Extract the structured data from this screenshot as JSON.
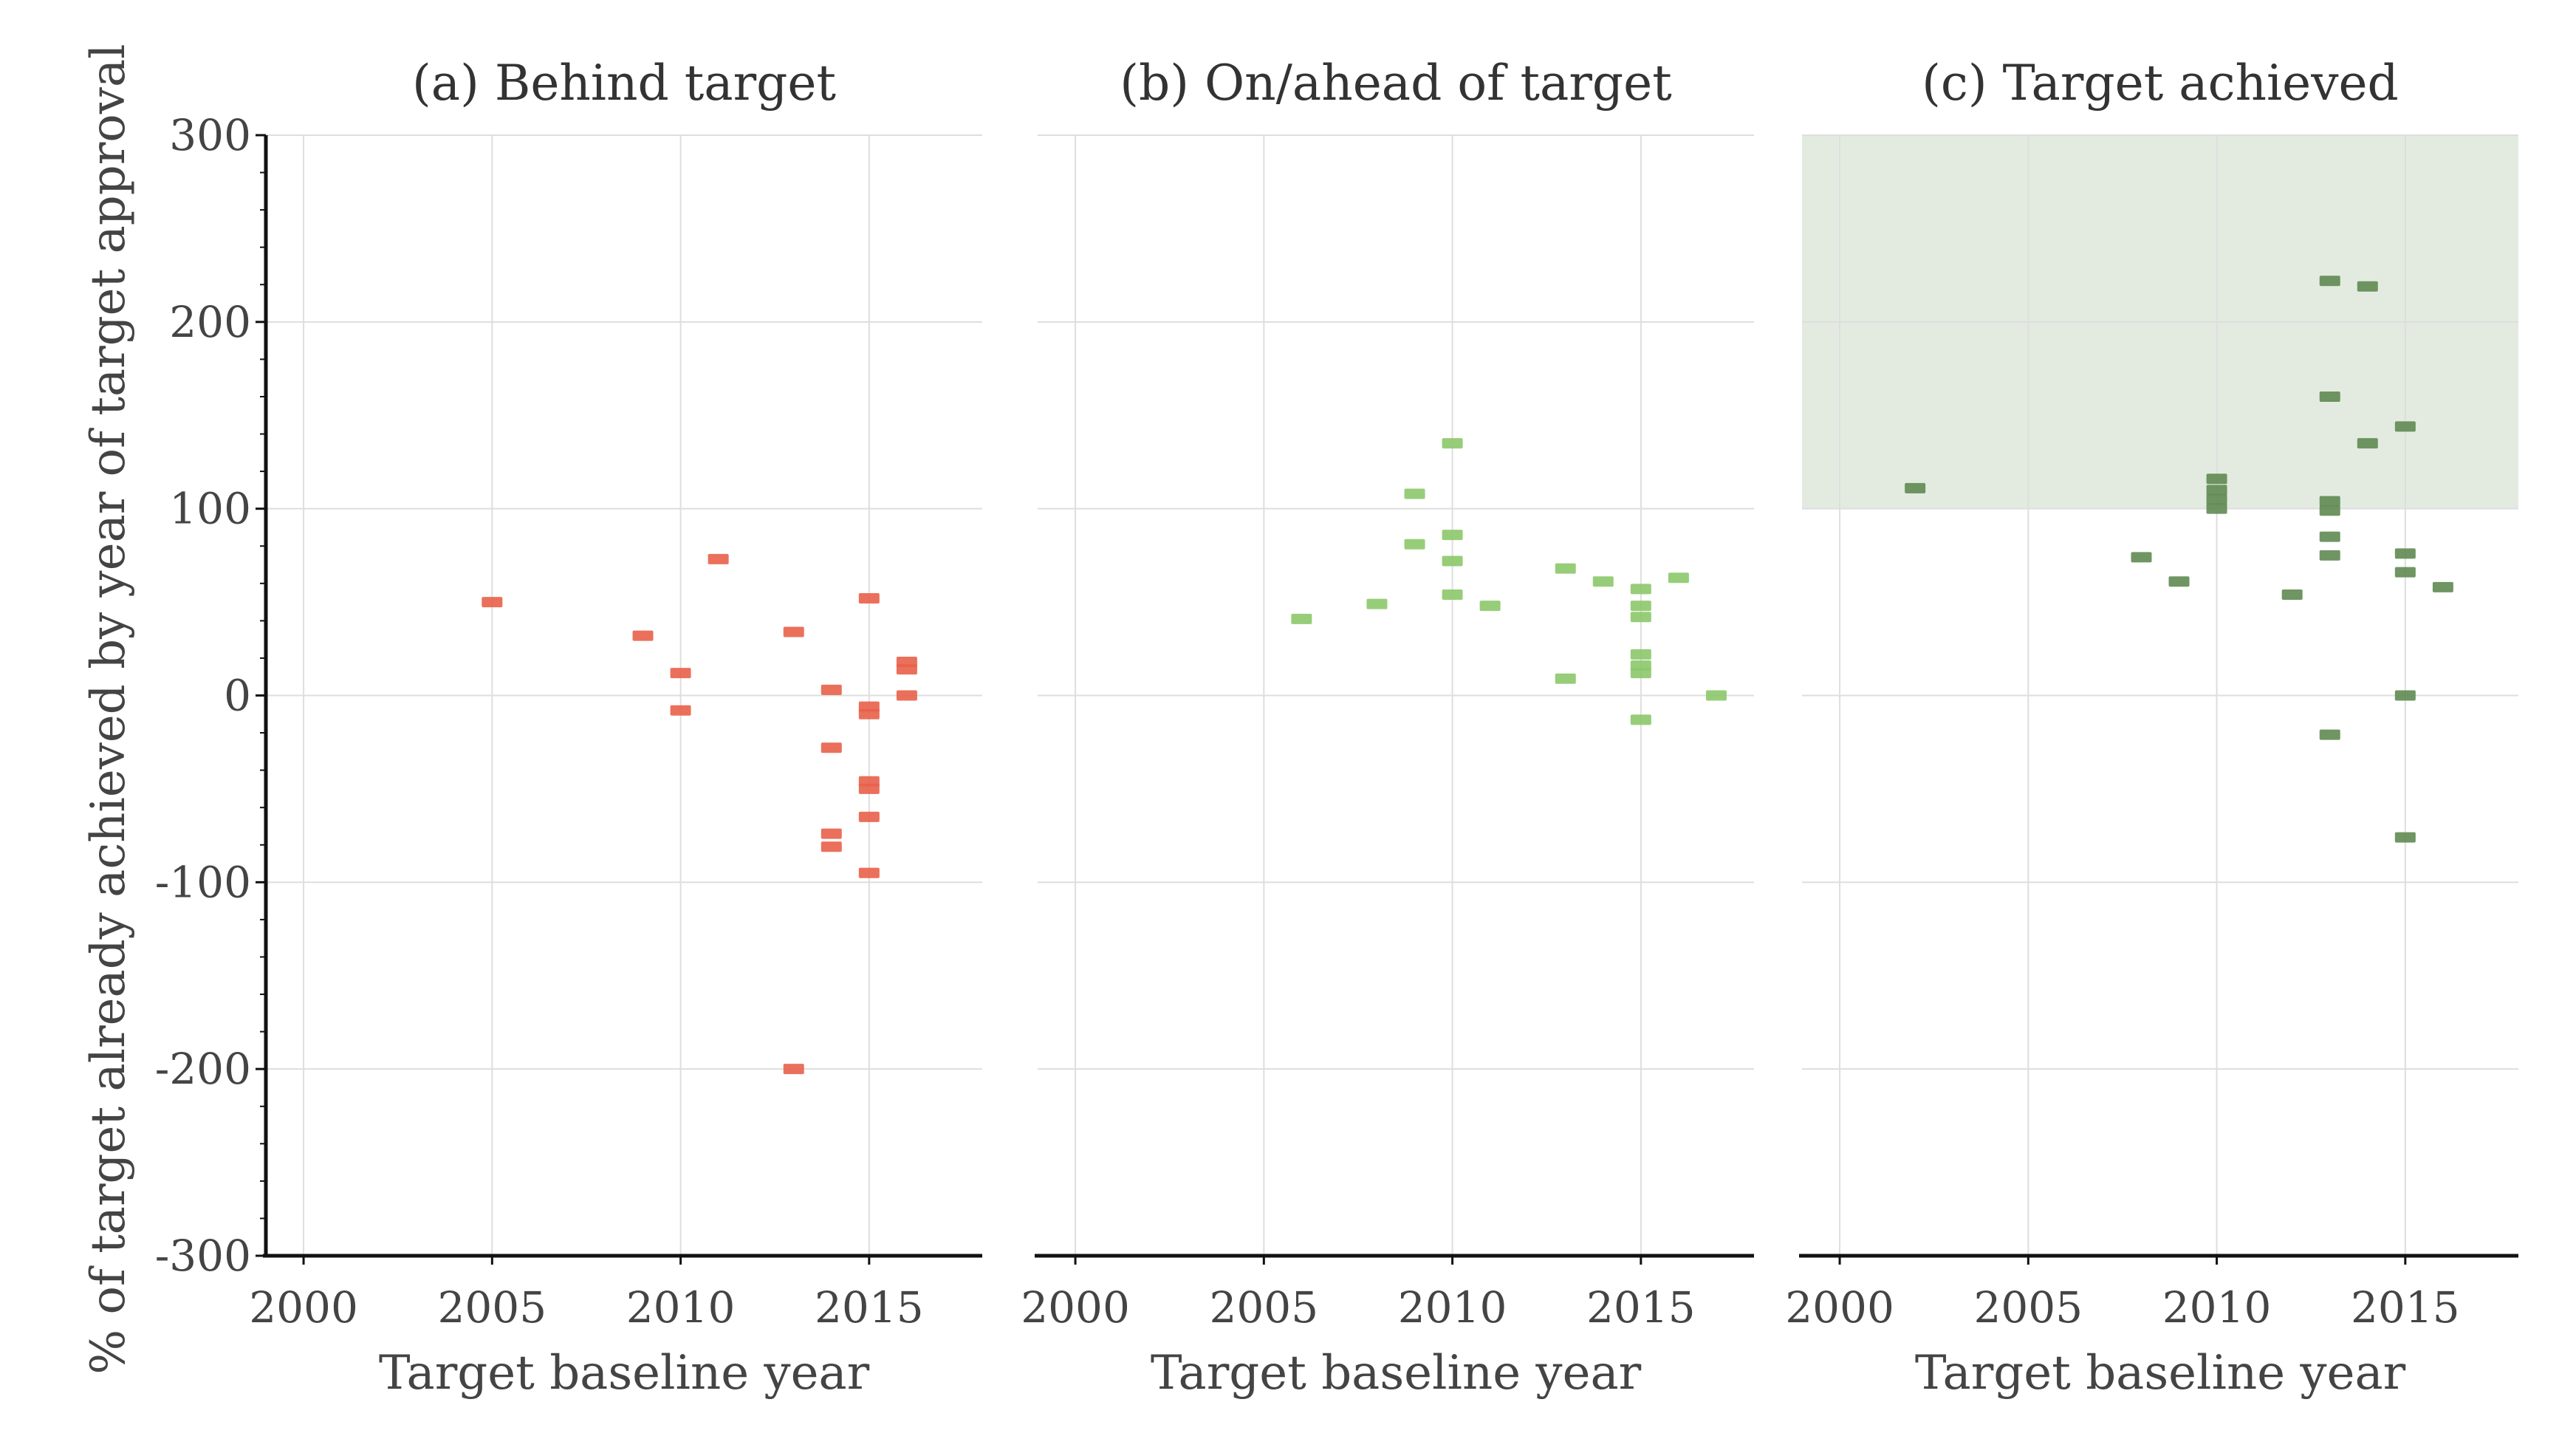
{
  "figure": {
    "ylabel": "% of target already achieved by year of target approval",
    "xlabel": "Target baseline year",
    "ylim": [
      -300,
      300
    ],
    "yticks": [
      "300",
      "200",
      "100",
      "0",
      "-100",
      "-200",
      "-300"
    ],
    "xlim": [
      1999,
      2018
    ],
    "xticks": [
      "2000",
      "2005",
      "2010",
      "2015"
    ]
  },
  "colors": {
    "behind": "#e8614a",
    "on_ahead": "#8cc86a",
    "achieved": "#5f8a52",
    "shade": "#e3ebe1",
    "grid": "#dedede",
    "axis": "#111111"
  },
  "chart_data": [
    {
      "type": "scatter",
      "title": "(a) Behind target",
      "xlabel": "Target baseline year",
      "ylabel": "% of target already achieved by year of target approval",
      "xlim": [
        1999,
        2018
      ],
      "ylim": [
        -300,
        300
      ],
      "color": "#e8614a",
      "points": [
        [
          2005,
          50
        ],
        [
          2009,
          32
        ],
        [
          2010,
          12
        ],
        [
          2010,
          -8
        ],
        [
          2011,
          73
        ],
        [
          2013,
          34
        ],
        [
          2013,
          -200
        ],
        [
          2014,
          3
        ],
        [
          2014,
          -28
        ],
        [
          2014,
          -74
        ],
        [
          2014,
          -81
        ],
        [
          2015,
          52
        ],
        [
          2015,
          -6
        ],
        [
          2015,
          -10
        ],
        [
          2015,
          -46
        ],
        [
          2015,
          -50
        ],
        [
          2015,
          -65
        ],
        [
          2015,
          -95
        ],
        [
          2016,
          18
        ],
        [
          2016,
          14
        ],
        [
          2016,
          0
        ]
      ]
    },
    {
      "type": "scatter",
      "title": "(b) On/ahead of target",
      "xlabel": "Target baseline year",
      "xlim": [
        1999,
        2018
      ],
      "ylim": [
        -300,
        300
      ],
      "color": "#8cc86a",
      "points": [
        [
          2006,
          41
        ],
        [
          2008,
          49
        ],
        [
          2009,
          108
        ],
        [
          2009,
          81
        ],
        [
          2010,
          135
        ],
        [
          2010,
          86
        ],
        [
          2010,
          72
        ],
        [
          2010,
          54
        ],
        [
          2011,
          48
        ],
        [
          2013,
          68
        ],
        [
          2013,
          9
        ],
        [
          2014,
          61
        ],
        [
          2015,
          57
        ],
        [
          2015,
          48
        ],
        [
          2015,
          42
        ],
        [
          2015,
          22
        ],
        [
          2015,
          16
        ],
        [
          2015,
          12
        ],
        [
          2015,
          -13
        ],
        [
          2016,
          63
        ],
        [
          2017,
          0
        ]
      ]
    },
    {
      "type": "scatter",
      "title": "(c) Target achieved",
      "xlabel": "Target baseline year",
      "xlim": [
        1999,
        2018
      ],
      "ylim": [
        -300,
        300
      ],
      "color": "#5f8a52",
      "shaded_region": {
        "y_from": 100,
        "y_to": 300
      },
      "points": [
        [
          2002,
          111
        ],
        [
          2008,
          74
        ],
        [
          2009,
          61
        ],
        [
          2010,
          116
        ],
        [
          2010,
          110
        ],
        [
          2010,
          105
        ],
        [
          2010,
          100
        ],
        [
          2012,
          54
        ],
        [
          2013,
          222
        ],
        [
          2013,
          160
        ],
        [
          2013,
          104
        ],
        [
          2013,
          99
        ],
        [
          2013,
          85
        ],
        [
          2013,
          75
        ],
        [
          2013,
          -21
        ],
        [
          2014,
          219
        ],
        [
          2014,
          135
        ],
        [
          2015,
          144
        ],
        [
          2015,
          76
        ],
        [
          2015,
          66
        ],
        [
          2015,
          0
        ],
        [
          2015,
          -76
        ],
        [
          2016,
          58
        ]
      ]
    }
  ]
}
